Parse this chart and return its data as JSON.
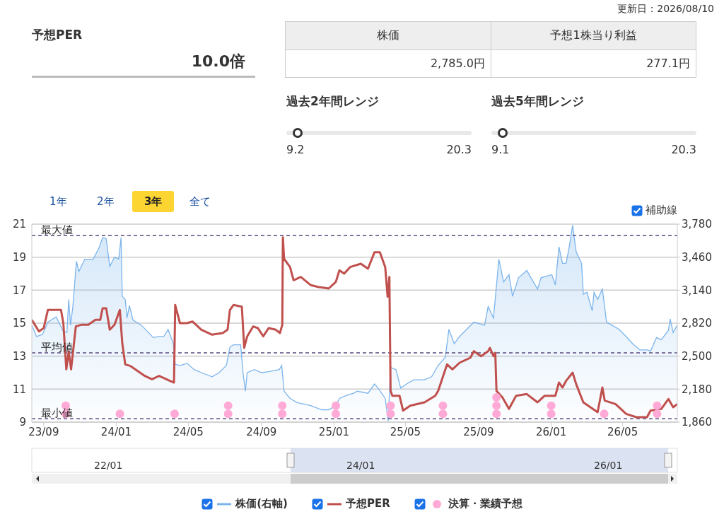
{
  "chart_data": [
    {
      "type": "other",
      "title": "予想PER",
      "annotations": [
        "10.0倍",
        "更新日：2026/08/10",
        "株価",
        "2,785.0円",
        "予想1株当り利益",
        "277.1円",
        "過去2年間レンジ",
        "9.2",
        "20.3",
        "過去5年間レンジ",
        "9.1",
        "20.3",
        "1年",
        "2年",
        "3年",
        "全て"
      ]
    },
    {
      "type": "line",
      "xlim": [
        "2023-08-12",
        "2026-08-01"
      ],
      "xticks": [
        {
          "value": "2023-09-01",
          "label": "23/09"
        },
        {
          "value": "2024-01-01",
          "label": "24/01"
        },
        {
          "value": "2024-05-01",
          "label": "24/05"
        },
        {
          "value": "2024-09-01",
          "label": "24/09"
        },
        {
          "value": "2025-01-01",
          "label": "25/01"
        },
        {
          "value": "2025-05-01",
          "label": "25/05"
        },
        {
          "value": "2025-09-01",
          "label": "25/09"
        },
        {
          "value": "2026-01-01",
          "label": "26/01"
        },
        {
          "value": "2026-05-01",
          "label": "26/05"
        }
      ],
      "ylim": [
        9,
        21
      ],
      "yticks": [
        9,
        11,
        13,
        15,
        17,
        19,
        21
      ],
      "y2lim": [
        1860,
        3780
      ],
      "y2ticks": [
        {
          "value": 1860,
          "label": "1,860"
        },
        {
          "value": 2180,
          "label": "2,180"
        },
        {
          "value": 2500,
          "label": "2,500"
        },
        {
          "value": 2820,
          "label": "2,820"
        },
        {
          "value": 3140,
          "label": "3,140"
        },
        {
          "value": 3460,
          "label": "3,460"
        },
        {
          "value": 3780,
          "label": "3,780"
        }
      ],
      "grid": "y",
      "legend": "bottom",
      "ref_lines": [
        {
          "axis": "y",
          "value": 20.3,
          "label": "最大値",
          "color": "#5a4a80",
          "line_style": "dashed"
        },
        {
          "axis": "y",
          "value": 13.2,
          "label": "平均値",
          "color": "#5a4a80",
          "line_style": "dashed"
        },
        {
          "axis": "y",
          "value": 9.2,
          "label": "最小値",
          "color": "#5a4a80",
          "line_style": "dashed"
        }
      ],
      "annotations": [
        "補助線",
        "22/01",
        "24/01",
        "26/01"
      ],
      "series": [
        {
          "name": "株価(右軸)",
          "type": "area",
          "axis": "y2",
          "color": "#7cb5ec",
          "x": [
            "2023-08-12",
            "2023-08-20",
            "2023-08-30",
            "2023-09-08",
            "2023-09-22",
            "2023-10-04",
            "2023-10-10",
            "2023-10-13",
            "2023-10-16",
            "2023-10-20",
            "2023-10-26",
            "2023-10-30",
            "2023-11-09",
            "2023-11-23",
            "2023-12-03",
            "2023-12-09",
            "2023-12-15",
            "2023-12-21",
            "2023-12-29",
            "2024-01-05",
            "2024-01-09",
            "2024-01-11",
            "2024-01-16",
            "2024-01-19",
            "2024-01-23",
            "2024-01-29",
            "2024-02-12",
            "2024-02-24",
            "2024-03-03",
            "2024-03-13",
            "2024-03-21",
            "2024-03-28",
            "2024-04-06",
            "2024-04-09",
            "2024-04-17",
            "2024-04-29",
            "2024-05-11",
            "2024-05-23",
            "2024-06-10",
            "2024-06-22",
            "2024-07-04",
            "2024-07-10",
            "2024-07-16",
            "2024-07-28",
            "2024-08-01",
            "2024-08-05",
            "2024-08-08",
            "2024-08-20",
            "2024-09-01",
            "2024-09-13",
            "2024-10-01",
            "2024-10-05",
            "2024-10-09",
            "2024-10-19",
            "2024-10-31",
            "2024-11-23",
            "2024-12-11",
            "2024-12-23",
            "2025-01-04",
            "2025-01-10",
            "2025-01-22",
            "2025-02-03",
            "2025-02-09",
            "2025-02-27",
            "2025-03-10",
            "2025-03-16",
            "2025-03-28",
            "2025-04-02",
            "2025-04-06",
            "2025-04-15",
            "2025-04-23",
            "2025-05-03",
            "2025-05-15",
            "2025-06-02",
            "2025-06-14",
            "2025-06-25",
            "2025-07-07",
            "2025-07-13",
            "2025-07-22",
            "2025-07-31",
            "2025-08-12",
            "2025-08-24",
            "2025-09-11",
            "2025-09-17",
            "2025-09-26",
            "2025-10-05",
            "2025-10-13",
            "2025-10-22",
            "2025-10-28",
            "2025-11-07",
            "2025-11-21",
            "2025-12-09",
            "2025-12-15",
            "2026-01-02",
            "2026-01-08",
            "2026-01-14",
            "2026-01-20",
            "2026-01-26",
            "2026-01-31",
            "2026-02-06",
            "2026-02-12",
            "2026-02-21",
            "2026-02-24",
            "2026-03-02",
            "2026-03-11",
            "2026-03-14",
            "2026-03-20",
            "2026-03-28",
            "2026-04-04",
            "2026-04-13",
            "2026-04-25",
            "2026-05-07",
            "2026-05-18",
            "2026-05-30",
            "2026-06-11",
            "2026-06-17",
            "2026-06-27",
            "2026-07-05",
            "2026-07-17",
            "2026-07-20",
            "2026-07-25",
            "2026-08-01"
          ],
          "values": [
            2800,
            2690,
            2710,
            2830,
            2880,
            2740,
            2730,
            3050,
            2800,
            2980,
            3420,
            3320,
            3440,
            3440,
            3550,
            3650,
            3640,
            3370,
            3460,
            3440,
            3650,
            3080,
            3050,
            2870,
            2990,
            2850,
            2800,
            2730,
            2680,
            2690,
            2690,
            2760,
            2620,
            2420,
            2410,
            2430,
            2370,
            2340,
            2300,
            2340,
            2410,
            2590,
            2610,
            2610,
            2340,
            2160,
            2340,
            2370,
            2340,
            2350,
            2370,
            2410,
            2160,
            2090,
            2050,
            2020,
            1980,
            1980,
            2020,
            2090,
            2120,
            2140,
            2160,
            2140,
            2230,
            2190,
            2090,
            1870,
            2390,
            2370,
            2190,
            2230,
            2270,
            2270,
            2300,
            2410,
            2490,
            2760,
            2620,
            2690,
            2760,
            2830,
            2800,
            2980,
            2870,
            3440,
            3220,
            3290,
            3080,
            3260,
            3330,
            3150,
            3260,
            3290,
            3190,
            3560,
            3400,
            3400,
            3550,
            3770,
            3510,
            3400,
            3100,
            3120,
            2940,
            3120,
            3050,
            3150,
            2830,
            2800,
            2760,
            2690,
            2620,
            2560,
            2560,
            2550,
            2680,
            2660,
            2750,
            2860,
            2730,
            2800
          ]
        },
        {
          "name": "予想PER",
          "type": "line",
          "color": "#c0504d",
          "x": [
            "2023-08-12",
            "2023-08-24",
            "2023-09-01",
            "2023-09-08",
            "2023-09-22",
            "2023-09-30",
            "2023-10-04",
            "2023-10-09",
            "2023-10-13",
            "2023-10-17",
            "2023-10-25",
            "2023-11-03",
            "2023-11-15",
            "2023-11-27",
            "2023-12-05",
            "2023-12-09",
            "2023-12-15",
            "2023-12-21",
            "2023-12-29",
            "2024-01-07",
            "2024-01-11",
            "2024-01-16",
            "2024-01-25",
            "2024-02-06",
            "2024-02-18",
            "2024-03-01",
            "2024-03-13",
            "2024-03-31",
            "2024-04-07",
            "2024-04-09",
            "2024-04-17",
            "2024-04-29",
            "2024-05-08",
            "2024-05-23",
            "2024-06-10",
            "2024-06-28",
            "2024-07-06",
            "2024-07-10",
            "2024-07-16",
            "2024-07-30",
            "2024-08-03",
            "2024-08-08",
            "2024-08-18",
            "2024-08-26",
            "2024-09-04",
            "2024-09-13",
            "2024-09-25",
            "2024-10-02",
            "2024-10-06",
            "2024-10-07",
            "2024-10-09",
            "2024-10-19",
            "2024-10-25",
            "2024-11-06",
            "2024-11-23",
            "2024-12-05",
            "2024-12-23",
            "2025-01-04",
            "2025-01-10",
            "2025-01-18",
            "2025-01-28",
            "2025-02-15",
            "2025-02-27",
            "2025-03-10",
            "2025-03-19",
            "2025-03-28",
            "2025-04-01",
            "2025-04-04",
            "2025-04-06",
            "2025-04-09",
            "2025-04-21",
            "2025-04-27",
            "2025-05-09",
            "2025-06-02",
            "2025-06-20",
            "2025-06-25",
            "2025-07-10",
            "2025-07-19",
            "2025-07-31",
            "2025-08-18",
            "2025-08-24",
            "2025-09-05",
            "2025-09-17",
            "2025-09-20",
            "2025-09-26",
            "2025-09-29",
            "2025-10-01",
            "2025-10-11",
            "2025-10-22",
            "2025-11-03",
            "2025-11-21",
            "2025-12-09",
            "2025-12-21",
            "2026-01-08",
            "2026-01-14",
            "2026-01-20",
            "2026-01-26",
            "2026-02-06",
            "2026-02-12",
            "2026-02-24",
            "2026-03-08",
            "2026-03-20",
            "2026-03-28",
            "2026-04-01",
            "2026-04-19",
            "2026-05-07",
            "2026-05-24",
            "2026-06-11",
            "2026-06-17",
            "2026-07-05",
            "2026-07-17",
            "2026-07-25",
            "2026-08-01"
          ],
          "values": [
            15.2,
            14.5,
            14.7,
            15.8,
            15.8,
            15.8,
            15.0,
            12.2,
            13.3,
            12.2,
            14.8,
            14.9,
            14.9,
            15.2,
            15.2,
            15.9,
            15.9,
            14.6,
            14.9,
            15.8,
            13.8,
            12.5,
            12.4,
            12.1,
            11.8,
            11.6,
            11.8,
            11.5,
            11.4,
            16.1,
            15.0,
            15.0,
            15.1,
            14.6,
            14.3,
            14.4,
            14.6,
            15.8,
            16.1,
            16.0,
            13.5,
            14.2,
            14.8,
            14.7,
            14.2,
            14.7,
            14.6,
            14.4,
            14.9,
            20.2,
            18.9,
            18.4,
            17.6,
            17.8,
            17.3,
            17.2,
            17.1,
            17.5,
            18.2,
            18.0,
            18.4,
            18.6,
            18.3,
            19.3,
            19.3,
            18.4,
            16.6,
            17.8,
            10.9,
            10.6,
            10.6,
            9.7,
            10.0,
            10.2,
            10.6,
            10.9,
            12.5,
            12.2,
            12.6,
            12.9,
            13.3,
            13.0,
            13.3,
            13.5,
            13.0,
            13.2,
            10.9,
            10.5,
            9.8,
            10.6,
            10.7,
            10.2,
            10.6,
            10.6,
            11.4,
            11.1,
            11.5,
            12.0,
            11.3,
            10.2,
            9.9,
            9.6,
            11.1,
            10.3,
            10.1,
            9.5,
            9.3,
            9.3,
            9.7,
            9.8,
            10.4,
            9.9,
            10.1
          ]
        },
        {
          "name": "決算・業績予想",
          "type": "scatter",
          "marker": "circle",
          "color": "#ffaad6",
          "x": [
            "2023-10-08",
            "2023-10-08",
            "2024-01-07",
            "2024-04-08",
            "2024-07-07",
            "2024-07-07",
            "2024-10-06",
            "2024-10-06",
            "2025-01-04",
            "2025-01-04",
            "2025-04-06",
            "2025-04-06",
            "2025-07-03",
            "2025-07-03",
            "2025-10-01",
            "2025-10-01",
            "2025-10-01",
            "2026-01-01",
            "2026-01-01",
            "2026-03-31",
            "2026-06-28",
            "2026-06-28"
          ],
          "values": [
            9.5,
            10.0,
            9.5,
            9.5,
            9.5,
            10.0,
            9.5,
            10.0,
            9.5,
            10.0,
            9.5,
            10.0,
            9.5,
            10.0,
            9.5,
            10.0,
            10.5,
            9.5,
            10.0,
            9.5,
            9.5,
            10.0
          ]
        }
      ]
    }
  ]
}
